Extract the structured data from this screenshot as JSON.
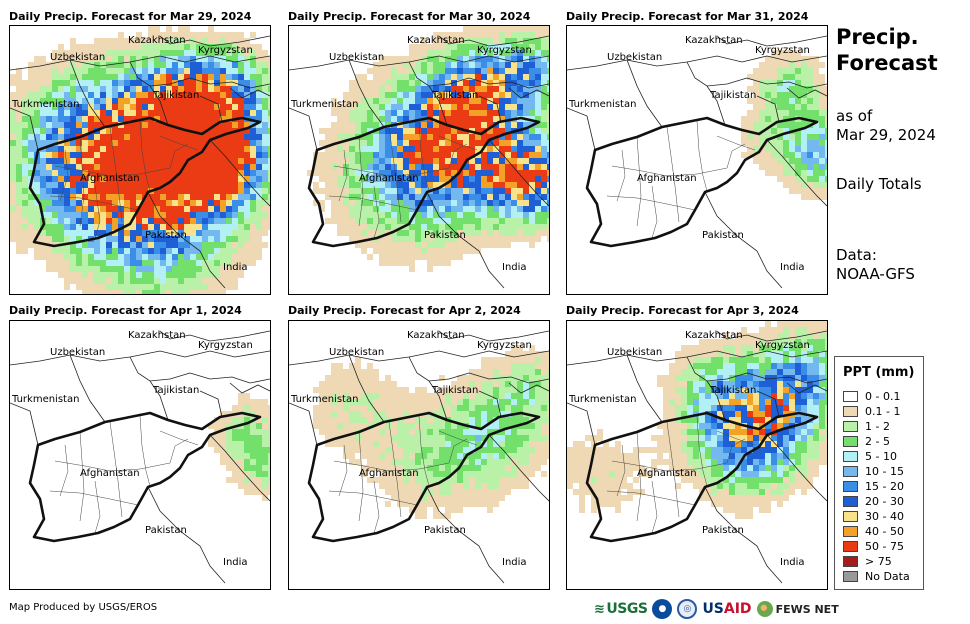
{
  "panels": [
    {
      "title": "Daily Precip. Forecast for Mar 29, 2024",
      "intensity": 1.0
    },
    {
      "title": "Daily Precip. Forecast for Mar 30, 2024",
      "intensity": 0.85
    },
    {
      "title": "Daily Precip. Forecast for Mar 31, 2024",
      "intensity": 0.2
    },
    {
      "title": "Daily Precip. Forecast for Apr 1, 2024",
      "intensity": 0.15
    },
    {
      "title": "Daily Precip. Forecast for Apr 2, 2024",
      "intensity": 0.35
    },
    {
      "title": "Daily Precip. Forecast for Apr 3, 2024",
      "intensity": 0.55
    }
  ],
  "countries": {
    "kazakhstan": "Kazakhstan",
    "kyrgyzstan": "Kyrgyzstan",
    "uzbekistan": "Uzbekistan",
    "tajikistan": "Tajikistan",
    "turkmenistan": "Turkmenistan",
    "afghanistan": "Afghanistan",
    "pakistan": "Pakistan",
    "india": "India"
  },
  "side": {
    "title_line1": "Precip.",
    "title_line2": "Forecast",
    "asof_line1": "as of",
    "asof_line2": "Mar 29, 2024",
    "totals": "Daily Totals",
    "data_line1": "Data:",
    "data_line2": "NOAA-GFS"
  },
  "legend": {
    "title": "PPT (mm)",
    "items": [
      {
        "label": "0 - 0.1",
        "color": "#ffffff"
      },
      {
        "label": "0.1 - 1",
        "color": "#efd9b4"
      },
      {
        "label": "1 - 2",
        "color": "#b9f1a9"
      },
      {
        "label": "2 - 5",
        "color": "#72e06a"
      },
      {
        "label": "5 - 10",
        "color": "#b3f0f5"
      },
      {
        "label": "10 - 15",
        "color": "#74b8f0"
      },
      {
        "label": "15 - 20",
        "color": "#3a8ee8"
      },
      {
        "label": "20 - 30",
        "color": "#1f5fd6"
      },
      {
        "label": "30 - 40",
        "color": "#f9e38a"
      },
      {
        "label": "40 - 50",
        "color": "#f4a227"
      },
      {
        "label": "50 - 75",
        "color": "#ea3b14"
      },
      {
        "label": "> 75",
        "color": "#a61b1b"
      },
      {
        "label": "No Data",
        "color": "#999999"
      }
    ]
  },
  "footer": {
    "produced_by": "Map Produced by USGS/EROS"
  },
  "logos": {
    "usgs": "USGS",
    "noaa": "NOAA",
    "usda": "USDA",
    "usaid_us": "US",
    "usaid_aid": "AID",
    "fews": "FEWS NET"
  }
}
